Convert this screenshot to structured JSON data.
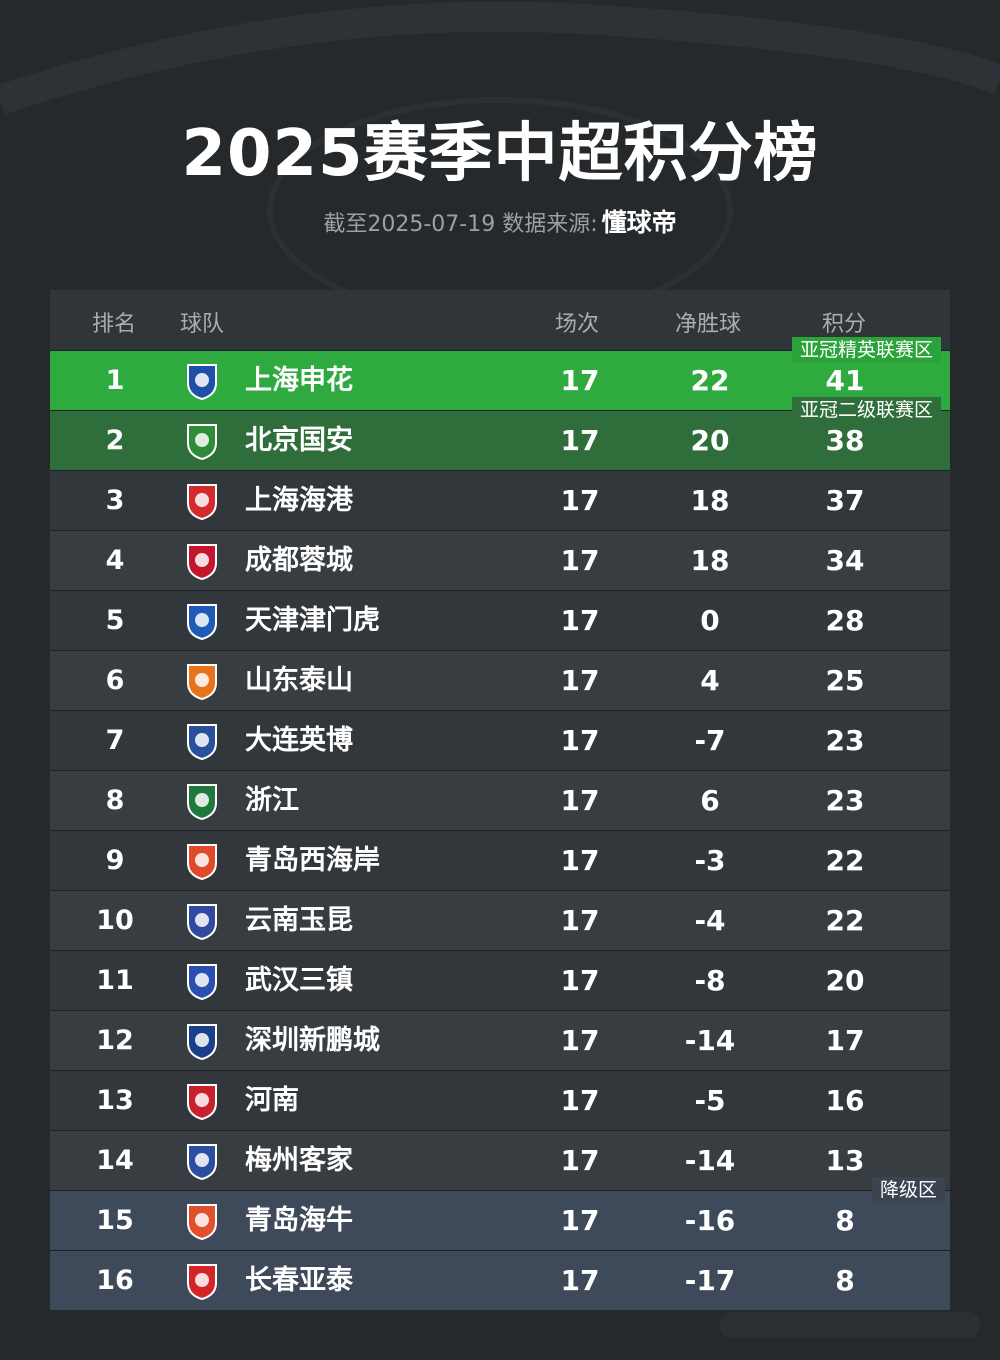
{
  "header": {
    "title": "2025赛季中超积分榜",
    "subtitle_prefix": "截至2025-07-19 数据来源:",
    "subtitle_source": "懂球帝"
  },
  "table": {
    "columns": {
      "rank": "排名",
      "team": "球队",
      "played": "场次",
      "goal_diff": "净胜球",
      "points": "积分"
    },
    "zones": {
      "acl_elite": "亚冠精英联赛区",
      "acl_two": "亚冠二级联赛区",
      "relegation": "降级区"
    },
    "rows": [
      {
        "rank": "1",
        "team": "上海申花",
        "played": "17",
        "gd": "22",
        "pts": "41",
        "zone": "champ",
        "color": "#1f4fa8",
        "icon": "shenhua-badge"
      },
      {
        "rank": "2",
        "team": "北京国安",
        "played": "17",
        "gd": "20",
        "pts": "38",
        "zone": "acl2",
        "color": "#2e8b3a",
        "icon": "guoan-badge"
      },
      {
        "rank": "3",
        "team": "上海海港",
        "played": "17",
        "gd": "18",
        "pts": "37",
        "zone": "",
        "color": "#d22b2b",
        "icon": "haigang-badge"
      },
      {
        "rank": "4",
        "team": "成都蓉城",
        "played": "17",
        "gd": "18",
        "pts": "34",
        "zone": "",
        "color": "#c4152c",
        "icon": "rongcheng-badge"
      },
      {
        "rank": "5",
        "team": "天津津门虎",
        "played": "17",
        "gd": "0",
        "pts": "28",
        "zone": "",
        "color": "#1e5bb8",
        "icon": "jinmenhu-badge"
      },
      {
        "rank": "6",
        "team": "山东泰山",
        "played": "17",
        "gd": "4",
        "pts": "25",
        "zone": "",
        "color": "#e8731c",
        "icon": "taishan-badge"
      },
      {
        "rank": "7",
        "team": "大连英博",
        "played": "17",
        "gd": "-7",
        "pts": "23",
        "zone": "",
        "color": "#2a4f9c",
        "icon": "yingbo-badge"
      },
      {
        "rank": "8",
        "team": "浙江",
        "played": "17",
        "gd": "6",
        "pts": "23",
        "zone": "",
        "color": "#1d7a3c",
        "icon": "zhejiang-badge"
      },
      {
        "rank": "9",
        "team": "青岛西海岸",
        "played": "17",
        "gd": "-3",
        "pts": "22",
        "zone": "",
        "color": "#e04a2a",
        "icon": "xihaian-badge"
      },
      {
        "rank": "10",
        "team": "云南玉昆",
        "played": "17",
        "gd": "-4",
        "pts": "22",
        "zone": "",
        "color": "#2f4aa0",
        "icon": "yukun-badge"
      },
      {
        "rank": "11",
        "team": "武汉三镇",
        "played": "17",
        "gd": "-8",
        "pts": "20",
        "zone": "",
        "color": "#2b4fb0",
        "icon": "sanzhen-badge"
      },
      {
        "rank": "12",
        "team": "深圳新鹏城",
        "played": "17",
        "gd": "-14",
        "pts": "17",
        "zone": "",
        "color": "#1c3f8c",
        "icon": "xinpengcheng-badge"
      },
      {
        "rank": "13",
        "team": "河南",
        "played": "17",
        "gd": "-5",
        "pts": "16",
        "zone": "",
        "color": "#c8202c",
        "icon": "henan-badge"
      },
      {
        "rank": "14",
        "team": "梅州客家",
        "played": "17",
        "gd": "-14",
        "pts": "13",
        "zone": "",
        "color": "#2c4ea0",
        "icon": "kejia-badge"
      },
      {
        "rank": "15",
        "team": "青岛海牛",
        "played": "17",
        "gd": "-16",
        "pts": "8",
        "zone": "releg",
        "color": "#e0502a",
        "icon": "hainiu-badge"
      },
      {
        "rank": "16",
        "team": "长春亚泰",
        "played": "17",
        "gd": "-17",
        "pts": "8",
        "zone": "releg",
        "color": "#d4242a",
        "icon": "yatai-badge"
      }
    ]
  }
}
